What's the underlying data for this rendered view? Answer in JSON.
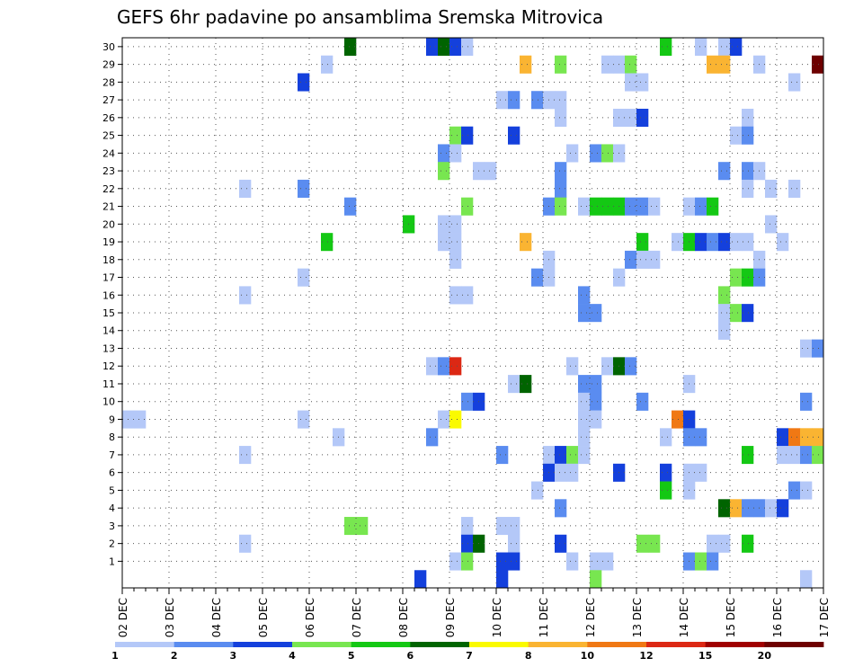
{
  "title": "GEFS 6hr padavine po ansamblima Sremska Mitrovica",
  "chart_data": {
    "type": "heatmap",
    "title": "GEFS 6hr padavine po ansamblima Sremska Mitrovica",
    "x_tick_labels": [
      "02 DEC",
      "03 DEC",
      "04 DEC",
      "05 DEC",
      "06 DEC",
      "07 DEC",
      "08 DEC",
      "09 DEC",
      "10 DEC",
      "11 DEC",
      "12 DEC",
      "13 DEC",
      "14 DEC",
      "15 DEC",
      "16 DEC",
      "17 DEC"
    ],
    "y_tick_labels": [
      "1",
      "2",
      "3",
      "4",
      "5",
      "6",
      "7",
      "8",
      "9",
      "10",
      "11",
      "12",
      "13",
      "14",
      "15",
      "16",
      "17",
      "18",
      "19",
      "20",
      "21",
      "22",
      "23",
      "24",
      "25",
      "26",
      "27",
      "28",
      "29",
      "30"
    ],
    "x_steps_per_day": 4,
    "x_step_hours": 6,
    "grid": "dotted",
    "colorbar": {
      "levels": [
        "1",
        "2",
        "3",
        "4",
        "5",
        "6",
        "7",
        "8",
        "10",
        "12",
        "15",
        "20"
      ],
      "colors": [
        "#b4c8f8",
        "#5a8cf0",
        "#1440dc",
        "#78e650",
        "#14c814",
        "#006400",
        "#fafa00",
        "#fab432",
        "#f07814",
        "#dc2814",
        "#a00000",
        "#6e0000"
      ]
    },
    "cells_legend": "[member, 6h step index from 02 DEC 00Z, colour class 1-12 (colorbar index)]",
    "cells": [
      [
        30,
        19,
        6
      ],
      [
        30,
        26,
        3
      ],
      [
        30,
        27,
        6
      ],
      [
        30,
        28,
        3
      ],
      [
        30,
        29,
        1
      ],
      [
        30,
        46,
        5
      ],
      [
        30,
        49,
        1
      ],
      [
        30,
        51,
        1
      ],
      [
        30,
        52,
        3
      ],
      [
        29,
        17,
        1
      ],
      [
        29,
        34,
        8
      ],
      [
        29,
        37,
        4
      ],
      [
        29,
        41,
        1
      ],
      [
        29,
        42,
        1
      ],
      [
        29,
        43,
        4
      ],
      [
        29,
        50,
        8
      ],
      [
        29,
        51,
        8
      ],
      [
        29,
        54,
        1
      ],
      [
        29,
        59,
        12
      ],
      [
        28,
        15,
        3
      ],
      [
        28,
        43,
        1
      ],
      [
        28,
        44,
        1
      ],
      [
        28,
        57,
        1
      ],
      [
        27,
        32,
        1
      ],
      [
        27,
        33,
        2
      ],
      [
        27,
        35,
        2
      ],
      [
        27,
        36,
        1
      ],
      [
        27,
        37,
        1
      ],
      [
        26,
        37,
        1
      ],
      [
        26,
        42,
        1
      ],
      [
        26,
        43,
        1
      ],
      [
        26,
        44,
        3
      ],
      [
        26,
        53,
        1
      ],
      [
        25,
        28,
        4
      ],
      [
        25,
        29,
        3
      ],
      [
        25,
        33,
        3
      ],
      [
        25,
        52,
        1
      ],
      [
        25,
        53,
        2
      ],
      [
        24,
        27,
        2
      ],
      [
        24,
        28,
        1
      ],
      [
        24,
        38,
        1
      ],
      [
        24,
        40,
        2
      ],
      [
        24,
        41,
        4
      ],
      [
        24,
        42,
        1
      ],
      [
        23,
        27,
        4
      ],
      [
        23,
        30,
        1
      ],
      [
        23,
        31,
        1
      ],
      [
        23,
        37,
        2
      ],
      [
        23,
        51,
        2
      ],
      [
        23,
        53,
        2
      ],
      [
        23,
        54,
        1
      ],
      [
        22,
        10,
        1
      ],
      [
        22,
        15,
        2
      ],
      [
        22,
        37,
        2
      ],
      [
        22,
        53,
        1
      ],
      [
        22,
        55,
        1
      ],
      [
        22,
        57,
        1
      ],
      [
        21,
        19,
        2
      ],
      [
        21,
        29,
        4
      ],
      [
        21,
        36,
        2
      ],
      [
        21,
        37,
        4
      ],
      [
        21,
        39,
        1
      ],
      [
        21,
        40,
        5
      ],
      [
        21,
        41,
        5
      ],
      [
        21,
        42,
        5
      ],
      [
        21,
        43,
        2
      ],
      [
        21,
        44,
        2
      ],
      [
        21,
        45,
        1
      ],
      [
        21,
        48,
        1
      ],
      [
        21,
        49,
        2
      ],
      [
        21,
        50,
        5
      ],
      [
        20,
        24,
        5
      ],
      [
        20,
        27,
        1
      ],
      [
        20,
        28,
        1
      ],
      [
        20,
        55,
        1
      ],
      [
        19,
        17,
        5
      ],
      [
        19,
        27,
        1
      ],
      [
        19,
        28,
        1
      ],
      [
        19,
        34,
        8
      ],
      [
        19,
        44,
        5
      ],
      [
        19,
        47,
        1
      ],
      [
        19,
        48,
        5
      ],
      [
        19,
        49,
        3
      ],
      [
        19,
        50,
        2
      ],
      [
        19,
        51,
        3
      ],
      [
        19,
        52,
        1
      ],
      [
        19,
        53,
        1
      ],
      [
        19,
        56,
        1
      ],
      [
        18,
        28,
        1
      ],
      [
        18,
        36,
        1
      ],
      [
        18,
        43,
        2
      ],
      [
        18,
        44,
        1
      ],
      [
        18,
        45,
        1
      ],
      [
        18,
        54,
        1
      ],
      [
        17,
        15,
        1
      ],
      [
        17,
        35,
        2
      ],
      [
        17,
        36,
        1
      ],
      [
        17,
        42,
        1
      ],
      [
        17,
        52,
        4
      ],
      [
        17,
        53,
        5
      ],
      [
        17,
        54,
        2
      ],
      [
        16,
        10,
        1
      ],
      [
        16,
        28,
        1
      ],
      [
        16,
        29,
        1
      ],
      [
        16,
        39,
        2
      ],
      [
        16,
        51,
        4
      ],
      [
        15,
        39,
        2
      ],
      [
        15,
        40,
        2
      ],
      [
        15,
        51,
        1
      ],
      [
        15,
        52,
        4
      ],
      [
        15,
        53,
        3
      ],
      [
        14,
        51,
        1
      ],
      [
        13,
        58,
        1
      ],
      [
        13,
        59,
        2
      ],
      [
        12,
        26,
        1
      ],
      [
        12,
        27,
        2
      ],
      [
        12,
        28,
        10
      ],
      [
        12,
        38,
        1
      ],
      [
        12,
        41,
        1
      ],
      [
        12,
        42,
        6
      ],
      [
        12,
        43,
        2
      ],
      [
        11,
        33,
        1
      ],
      [
        11,
        34,
        6
      ],
      [
        11,
        39,
        2
      ],
      [
        11,
        40,
        2
      ],
      [
        11,
        48,
        1
      ],
      [
        10,
        29,
        2
      ],
      [
        10,
        30,
        3
      ],
      [
        10,
        39,
        1
      ],
      [
        10,
        40,
        2
      ],
      [
        10,
        44,
        2
      ],
      [
        10,
        58,
        2
      ],
      [
        9,
        0,
        1
      ],
      [
        9,
        1,
        1
      ],
      [
        9,
        15,
        1
      ],
      [
        9,
        27,
        1
      ],
      [
        9,
        28,
        7
      ],
      [
        9,
        39,
        1
      ],
      [
        9,
        40,
        1
      ],
      [
        9,
        47,
        9
      ],
      [
        9,
        48,
        3
      ],
      [
        8,
        18,
        1
      ],
      [
        8,
        26,
        2
      ],
      [
        8,
        39,
        1
      ],
      [
        8,
        46,
        1
      ],
      [
        8,
        48,
        2
      ],
      [
        8,
        49,
        2
      ],
      [
        8,
        56,
        3
      ],
      [
        8,
        57,
        9
      ],
      [
        8,
        58,
        8
      ],
      [
        8,
        59,
        8
      ],
      [
        7,
        10,
        1
      ],
      [
        7,
        32,
        2
      ],
      [
        7,
        36,
        1
      ],
      [
        7,
        37,
        3
      ],
      [
        7,
        38,
        4
      ],
      [
        7,
        39,
        1
      ],
      [
        7,
        53,
        5
      ],
      [
        7,
        56,
        1
      ],
      [
        7,
        57,
        1
      ],
      [
        7,
        58,
        2
      ],
      [
        7,
        59,
        4
      ],
      [
        6,
        36,
        3
      ],
      [
        6,
        37,
        1
      ],
      [
        6,
        38,
        1
      ],
      [
        6,
        42,
        3
      ],
      [
        6,
        46,
        3
      ],
      [
        6,
        48,
        1
      ],
      [
        6,
        49,
        1
      ],
      [
        5,
        35,
        1
      ],
      [
        5,
        46,
        5
      ],
      [
        5,
        48,
        1
      ],
      [
        5,
        57,
        2
      ],
      [
        5,
        58,
        1
      ],
      [
        4,
        37,
        2
      ],
      [
        4,
        51,
        6
      ],
      [
        4,
        52,
        8
      ],
      [
        4,
        53,
        2
      ],
      [
        4,
        54,
        2
      ],
      [
        4,
        55,
        1
      ],
      [
        4,
        56,
        3
      ],
      [
        3,
        19,
        4
      ],
      [
        3,
        20,
        4
      ],
      [
        3,
        29,
        1
      ],
      [
        3,
        32,
        1
      ],
      [
        3,
        33,
        1
      ],
      [
        2,
        10,
        1
      ],
      [
        2,
        29,
        3
      ],
      [
        2,
        30,
        6
      ],
      [
        2,
        33,
        1
      ],
      [
        2,
        37,
        3
      ],
      [
        2,
        44,
        4
      ],
      [
        2,
        45,
        4
      ],
      [
        2,
        50,
        1
      ],
      [
        2,
        51,
        1
      ],
      [
        2,
        53,
        5
      ],
      [
        1,
        28,
        1
      ],
      [
        1,
        29,
        4
      ],
      [
        1,
        32,
        3
      ],
      [
        1,
        33,
        3
      ],
      [
        1,
        38,
        1
      ],
      [
        1,
        40,
        1
      ],
      [
        1,
        41,
        1
      ],
      [
        1,
        48,
        2
      ],
      [
        1,
        49,
        4
      ],
      [
        1,
        50,
        2
      ],
      [
        0,
        25,
        3
      ],
      [
        0,
        32,
        3
      ],
      [
        0,
        40,
        4
      ],
      [
        0,
        58,
        1
      ]
    ]
  }
}
